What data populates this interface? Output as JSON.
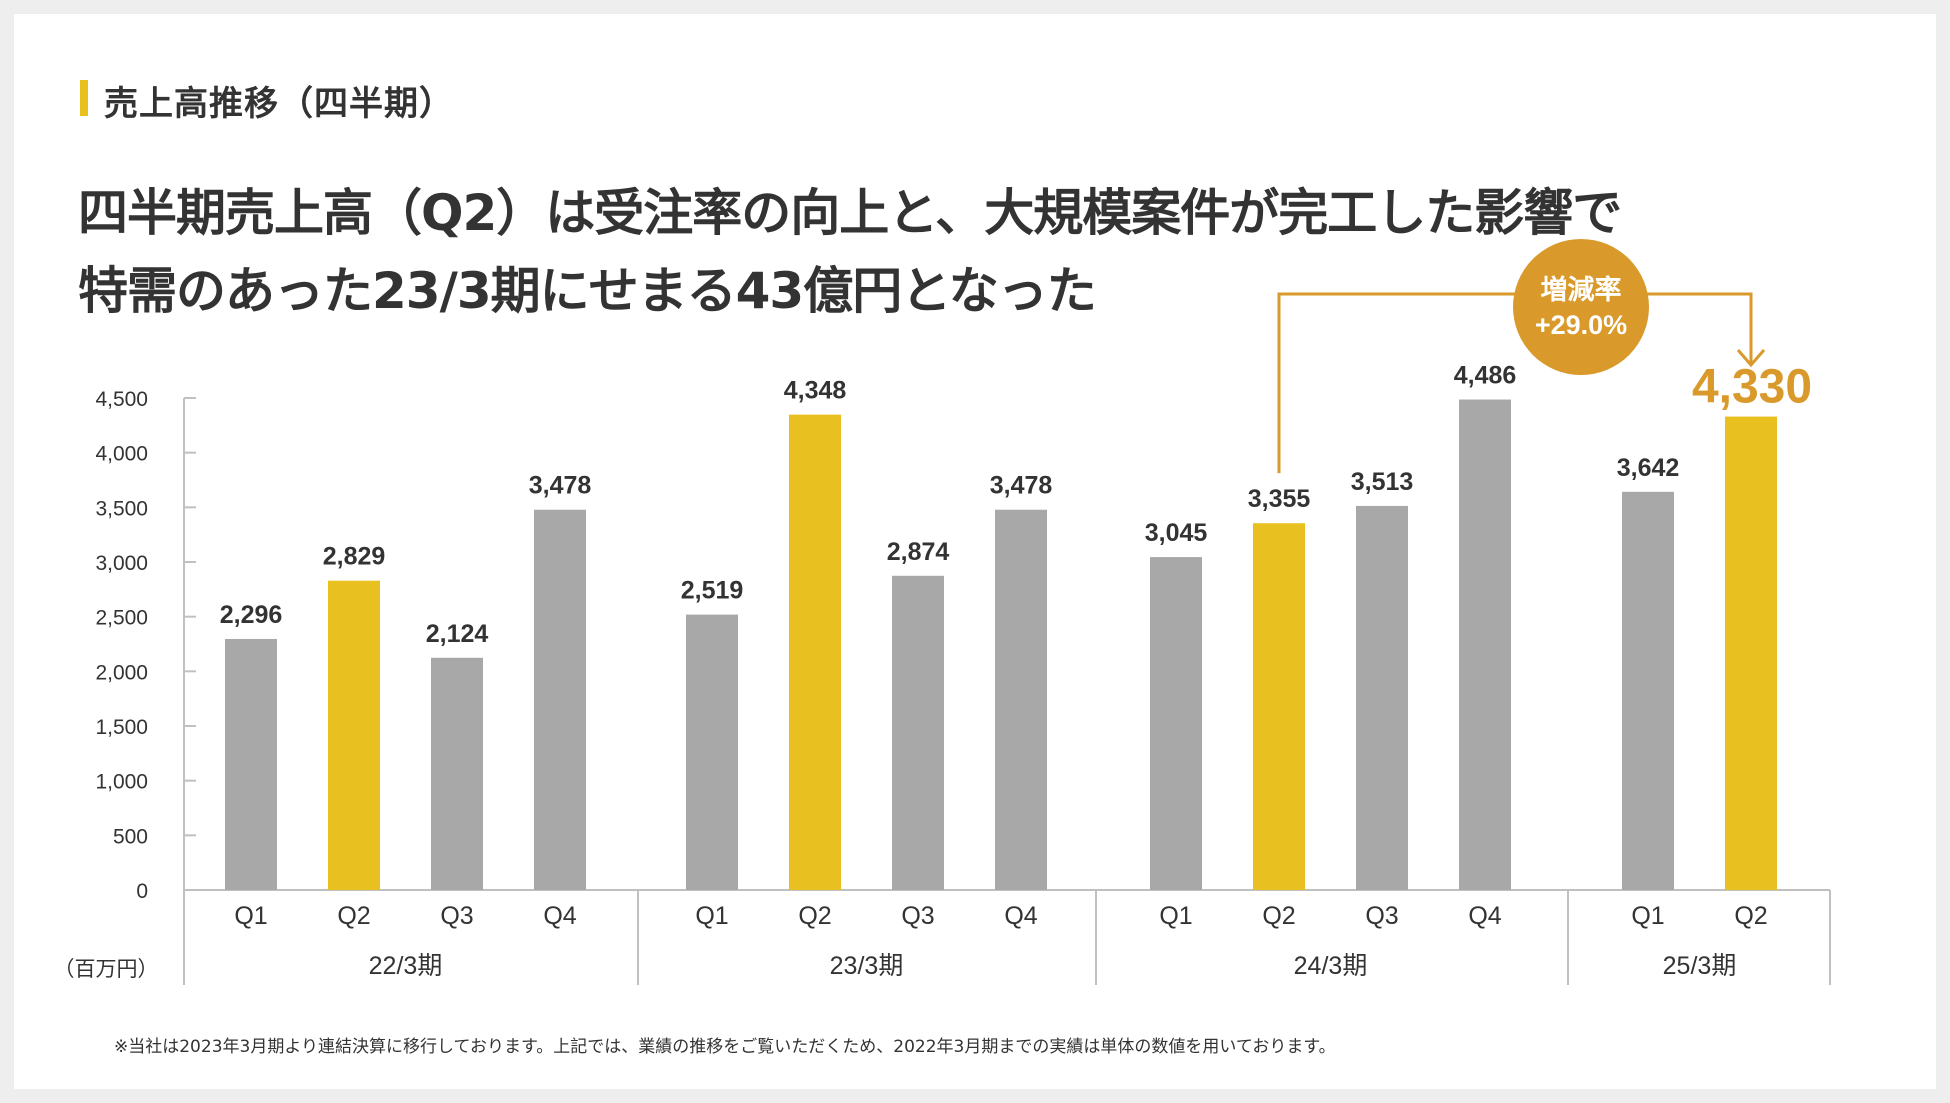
{
  "section_title": "売上高推移（四半期）",
  "headline": {
    "line1": "四半期売上高（Q2）は受注率の向上と、大規模案件が完工した影響で",
    "line2": "特需のあった23/3期にせまる43億円となった"
  },
  "footnote": "※当社は2023年3月期より連結決算に移行しております。上記では、業績の推移をご覧いただくため、2022年3月期までの実績は単体の数値を用いております。",
  "colors": {
    "highlight": "#e8c020",
    "normal": "#a8a8a8",
    "accent": "#d99a2b",
    "text": "#333333",
    "axis": "#c0c0c0"
  },
  "chart_data": {
    "type": "bar",
    "unit_label": "（百万円）",
    "ylim": [
      0,
      4500
    ],
    "yticks": [
      0,
      500,
      1000,
      1500,
      2000,
      2500,
      3000,
      3500,
      4000,
      4500
    ],
    "ytick_labels": [
      "0",
      "500",
      "1,000",
      "1,500",
      "2,000",
      "2,500",
      "3,000",
      "3,500",
      "4,000",
      "4,500"
    ],
    "groups": [
      {
        "label": "22/3期",
        "bars": [
          {
            "q": "Q1",
            "value": 2296,
            "label": "2,296",
            "highlight": false
          },
          {
            "q": "Q2",
            "value": 2829,
            "label": "2,829",
            "highlight": true
          },
          {
            "q": "Q3",
            "value": 2124,
            "label": "2,124",
            "highlight": false
          },
          {
            "q": "Q4",
            "value": 3478,
            "label": "3,478",
            "highlight": false
          }
        ]
      },
      {
        "label": "23/3期",
        "bars": [
          {
            "q": "Q1",
            "value": 2519,
            "label": "2,519",
            "highlight": false
          },
          {
            "q": "Q2",
            "value": 4348,
            "label": "4,348",
            "highlight": true
          },
          {
            "q": "Q3",
            "value": 2874,
            "label": "2,874",
            "highlight": false
          },
          {
            "q": "Q4",
            "value": 3478,
            "label": "3,478",
            "highlight": false
          }
        ]
      },
      {
        "label": "24/3期",
        "bars": [
          {
            "q": "Q1",
            "value": 3045,
            "label": "3,045",
            "highlight": false
          },
          {
            "q": "Q2",
            "value": 3355,
            "label": "3,355",
            "highlight": true
          },
          {
            "q": "Q3",
            "value": 3513,
            "label": "3,513",
            "highlight": false
          },
          {
            "q": "Q4",
            "value": 4486,
            "label": "4,486",
            "highlight": false
          }
        ]
      },
      {
        "label": "25/3期",
        "bars": [
          {
            "q": "Q1",
            "value": 3642,
            "label": "3,642",
            "highlight": false
          },
          {
            "q": "Q2",
            "value": 4330,
            "label": "4,330",
            "highlight": true,
            "emphasis": true
          }
        ]
      }
    ],
    "annotation": {
      "title": "増減率",
      "value": "+29.0%",
      "from": "24/3期 Q2",
      "to": "25/3期 Q2"
    }
  }
}
